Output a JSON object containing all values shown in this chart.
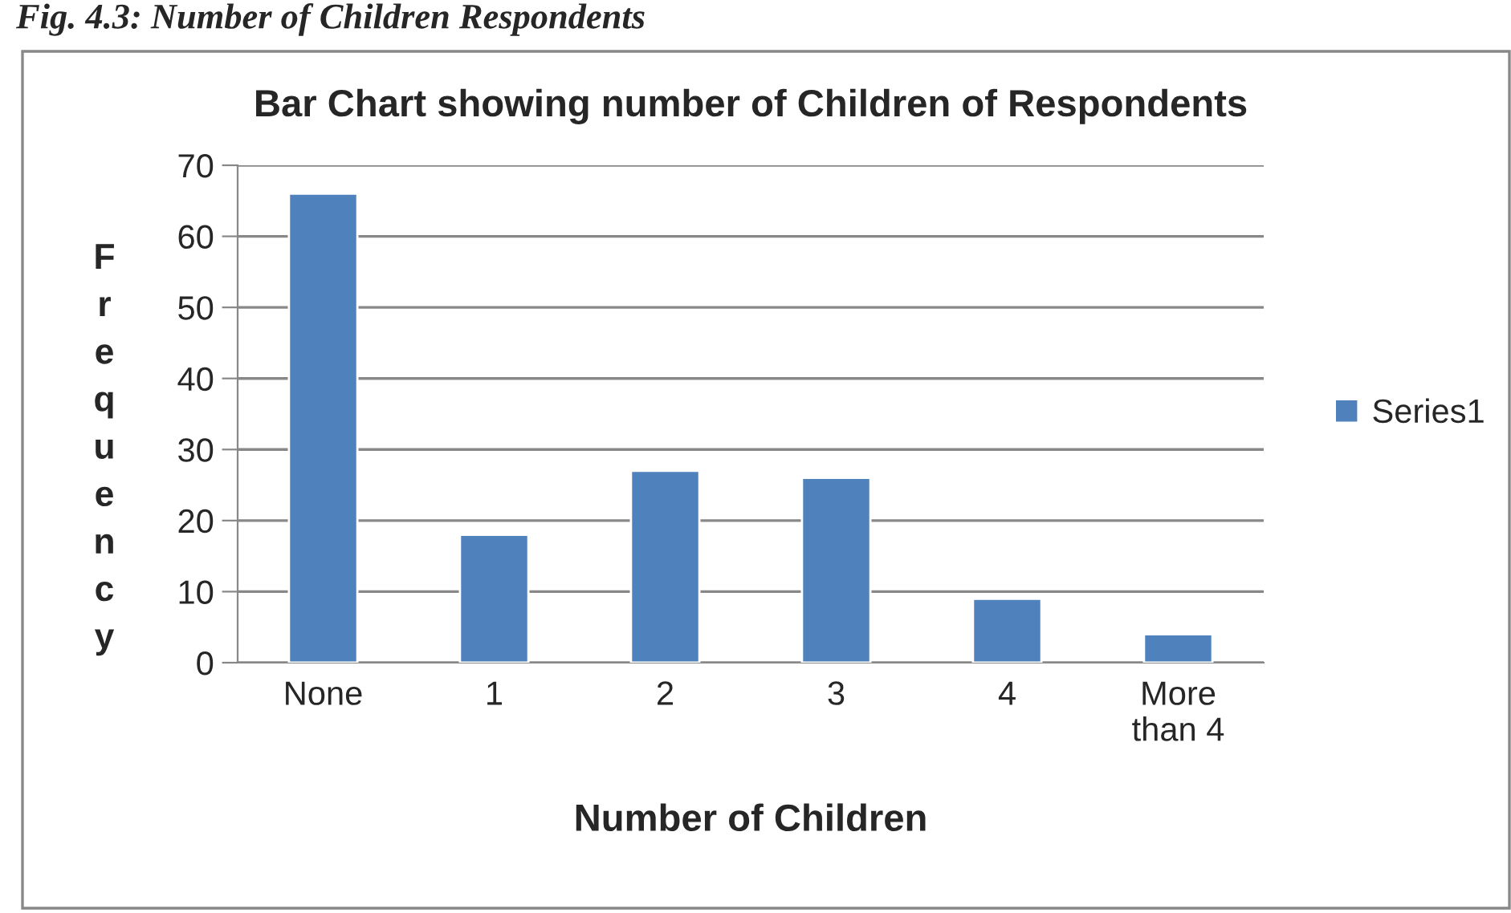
{
  "chart_data": {
    "type": "bar",
    "title": "Bar Chart showing number of Children of Respondents",
    "xlabel": "Number of Children",
    "ylabel": "Frequency",
    "categories": [
      "None",
      "1",
      "2",
      "3",
      "4",
      "More\nthan 4"
    ],
    "series": [
      {
        "name": "Series1",
        "color": "#4f81bd",
        "values": [
          66,
          18,
          27,
          26,
          9,
          4
        ]
      }
    ],
    "ylim": [
      0,
      70
    ],
    "yticks": [
      0,
      10,
      20,
      30,
      40,
      50,
      60,
      70
    ],
    "grid": "y",
    "legend": "right",
    "annotations": [
      "Fig. 4.3: Number of Children Respondents"
    ]
  }
}
